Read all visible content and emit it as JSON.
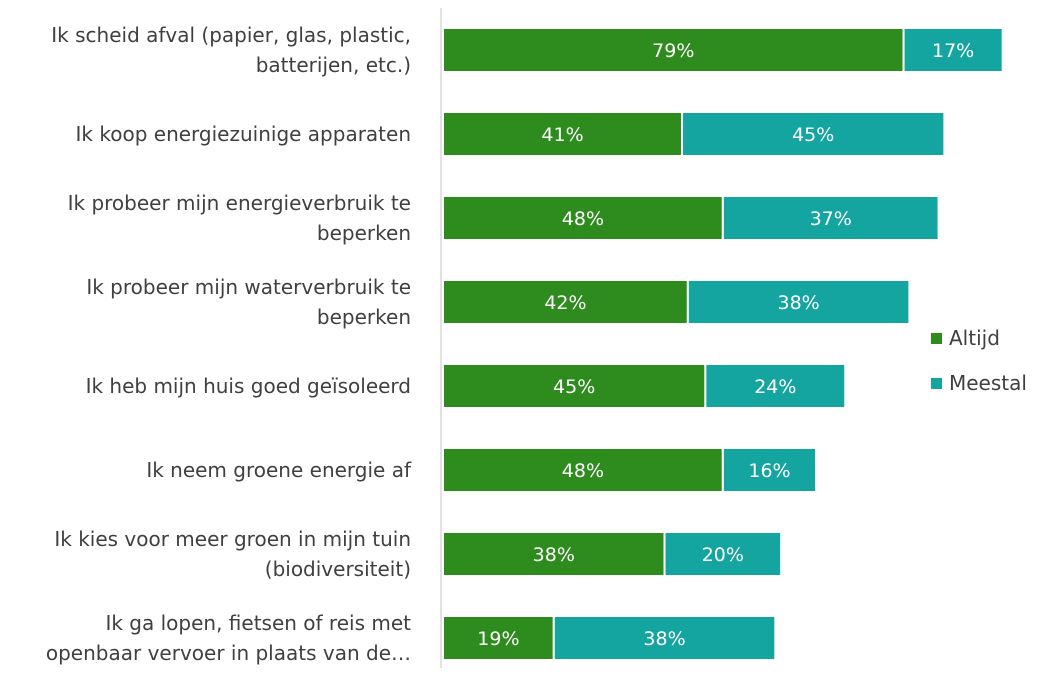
{
  "chart_data": {
    "type": "bar",
    "orientation": "horizontal",
    "stacked": true,
    "categories": [
      [
        "Ik scheid afval (papier, glas, plastic,",
        "batterijen, etc.)"
      ],
      [
        "Ik koop energiezuinige apparaten"
      ],
      [
        "Ik probeer mijn energieverbruik te",
        "beperken"
      ],
      [
        "Ik probeer mijn waterverbruik te",
        "beperken"
      ],
      [
        "Ik heb mijn huis goed geïsoleerd"
      ],
      [
        "Ik neem groene energie af"
      ],
      [
        "Ik kies voor meer groen in mijn tuin",
        "(biodiversiteit)"
      ],
      [
        "Ik ga lopen, fietsen of reis met",
        "openbaar vervoer in plaats van de…"
      ]
    ],
    "series": [
      {
        "name": "Altijd",
        "color": "#2e8b1e",
        "values": [
          79,
          41,
          48,
          42,
          45,
          48,
          38,
          19
        ],
        "labels": [
          "79%",
          "41%",
          "48%",
          "42%",
          "45%",
          "48%",
          "38%",
          "19%"
        ]
      },
      {
        "name": "Meestal",
        "color": "#14a5a0",
        "values": [
          17,
          45,
          37,
          38,
          24,
          16,
          20,
          38
        ],
        "labels": [
          "17%",
          "45%",
          "37%",
          "38%",
          "24%",
          "16%",
          "20%",
          "38%"
        ]
      }
    ],
    "xlim": [
      0,
      100
    ],
    "grid": false,
    "legend_position": "right"
  }
}
